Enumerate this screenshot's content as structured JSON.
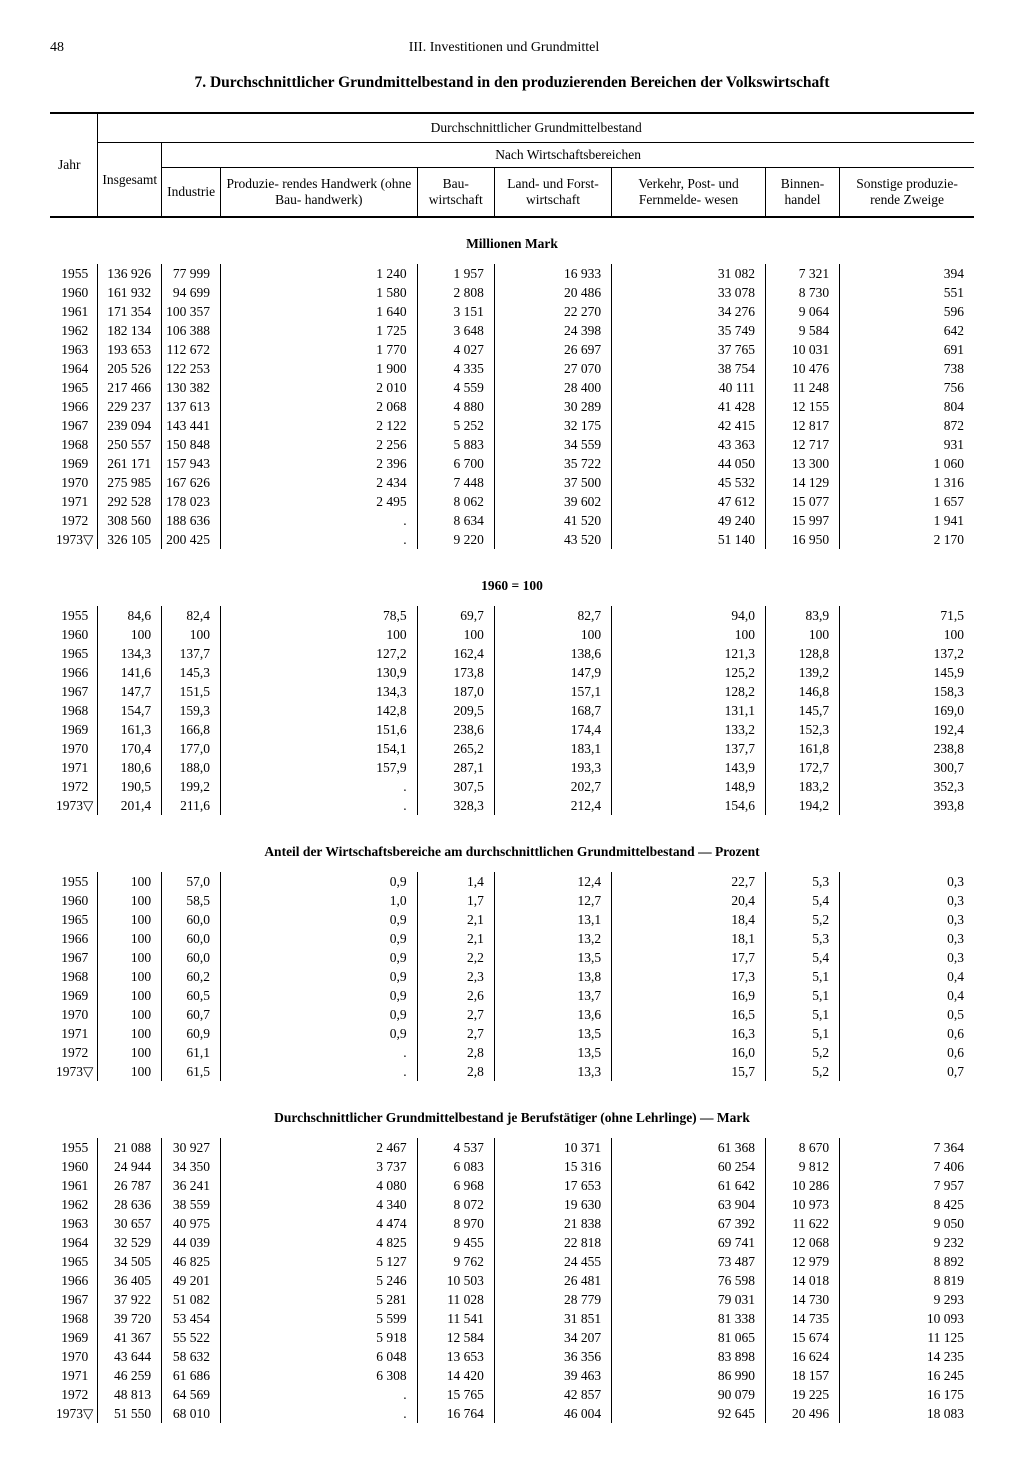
{
  "page_number": "48",
  "chapter": "III. Investitionen und Grundmittel",
  "title": "7. Durchschnittlicher Grundmittelbestand in den produzierenden Bereichen der Volkswirtschaft",
  "columns": {
    "super": "Durchschnittlicher Grundmittelbestand",
    "sub": "Nach Wirtschaftsbereichen",
    "year": "Jahr",
    "total": "Insgesamt",
    "c1": "Industrie",
    "c2": "Produzie-\nrendes\nHandwerk\n(ohne Bau-\nhandwerk)",
    "c3": "Bau-\nwirtschaft",
    "c4": "Land- und\nForst-\nwirtschaft",
    "c5": "Verkehr,\nPost- und\nFernmelde-\nwesen",
    "c6": "Binnen-\nhandel",
    "c7": "Sonstige\nproduzie-\nrende\nZweige"
  },
  "sections": [
    {
      "title": "Millionen Mark",
      "rows": [
        [
          "1955",
          "136 926",
          "77 999",
          "1 240",
          "1 957",
          "16 933",
          "31 082",
          "7 321",
          "394"
        ],
        [
          "1960",
          "161 932",
          "94 699",
          "1 580",
          "2 808",
          "20 486",
          "33 078",
          "8 730",
          "551"
        ],
        [
          "1961",
          "171 354",
          "100 357",
          "1 640",
          "3 151",
          "22 270",
          "34 276",
          "9 064",
          "596"
        ],
        [
          "1962",
          "182 134",
          "106 388",
          "1 725",
          "3 648",
          "24 398",
          "35 749",
          "9 584",
          "642"
        ],
        [
          "1963",
          "193 653",
          "112 672",
          "1 770",
          "4 027",
          "26 697",
          "37 765",
          "10 031",
          "691"
        ],
        [
          "1964",
          "205 526",
          "122 253",
          "1 900",
          "4 335",
          "27 070",
          "38 754",
          "10 476",
          "738"
        ],
        [
          "1965",
          "217 466",
          "130 382",
          "2 010",
          "4 559",
          "28 400",
          "40 111",
          "11 248",
          "756"
        ],
        [
          "1966",
          "229 237",
          "137 613",
          "2 068",
          "4 880",
          "30 289",
          "41 428",
          "12 155",
          "804"
        ],
        [
          "1967",
          "239 094",
          "143 441",
          "2 122",
          "5 252",
          "32 175",
          "42 415",
          "12 817",
          "872"
        ],
        [
          "1968",
          "250 557",
          "150 848",
          "2 256",
          "5 883",
          "34 559",
          "43 363",
          "12 717",
          "931"
        ],
        [
          "1969",
          "261 171",
          "157 943",
          "2 396",
          "6 700",
          "35 722",
          "44 050",
          "13 300",
          "1 060"
        ],
        [
          "1970",
          "275 985",
          "167 626",
          "2 434",
          "7 448",
          "37 500",
          "45 532",
          "14 129",
          "1 316"
        ],
        [
          "1971",
          "292 528",
          "178 023",
          "2 495",
          "8 062",
          "39 602",
          "47 612",
          "15 077",
          "1 657"
        ],
        [
          "1972",
          "308 560",
          "188 636",
          ".",
          "8 634",
          "41 520",
          "49 240",
          "15 997",
          "1 941"
        ],
        [
          "1973▽",
          "326 105",
          "200 425",
          ".",
          "9 220",
          "43 520",
          "51 140",
          "16 950",
          "2 170"
        ]
      ]
    },
    {
      "title": "1960 = 100",
      "rows": [
        [
          "1955",
          "84,6",
          "82,4",
          "78,5",
          "69,7",
          "82,7",
          "94,0",
          "83,9",
          "71,5"
        ],
        [
          "1960",
          "100",
          "100",
          "100",
          "100",
          "100",
          "100",
          "100",
          "100"
        ],
        [
          "1965",
          "134,3",
          "137,7",
          "127,2",
          "162,4",
          "138,6",
          "121,3",
          "128,8",
          "137,2"
        ],
        [
          "1966",
          "141,6",
          "145,3",
          "130,9",
          "173,8",
          "147,9",
          "125,2",
          "139,2",
          "145,9"
        ],
        [
          "1967",
          "147,7",
          "151,5",
          "134,3",
          "187,0",
          "157,1",
          "128,2",
          "146,8",
          "158,3"
        ],
        [
          "1968",
          "154,7",
          "159,3",
          "142,8",
          "209,5",
          "168,7",
          "131,1",
          "145,7",
          "169,0"
        ],
        [
          "1969",
          "161,3",
          "166,8",
          "151,6",
          "238,6",
          "174,4",
          "133,2",
          "152,3",
          "192,4"
        ],
        [
          "1970",
          "170,4",
          "177,0",
          "154,1",
          "265,2",
          "183,1",
          "137,7",
          "161,8",
          "238,8"
        ],
        [
          "1971",
          "180,6",
          "188,0",
          "157,9",
          "287,1",
          "193,3",
          "143,9",
          "172,7",
          "300,7"
        ],
        [
          "1972",
          "190,5",
          "199,2",
          ".",
          "307,5",
          "202,7",
          "148,9",
          "183,2",
          "352,3"
        ],
        [
          "1973▽",
          "201,4",
          "211,6",
          ".",
          "328,3",
          "212,4",
          "154,6",
          "194,2",
          "393,8"
        ]
      ]
    },
    {
      "title": "Anteil der Wirtschaftsbereiche am durchschnittlichen Grundmittelbestand — Prozent",
      "rows": [
        [
          "1955",
          "100",
          "57,0",
          "0,9",
          "1,4",
          "12,4",
          "22,7",
          "5,3",
          "0,3"
        ],
        [
          "1960",
          "100",
          "58,5",
          "1,0",
          "1,7",
          "12,7",
          "20,4",
          "5,4",
          "0,3"
        ],
        [
          "1965",
          "100",
          "60,0",
          "0,9",
          "2,1",
          "13,1",
          "18,4",
          "5,2",
          "0,3"
        ],
        [
          "1966",
          "100",
          "60,0",
          "0,9",
          "2,1",
          "13,2",
          "18,1",
          "5,3",
          "0,3"
        ],
        [
          "1967",
          "100",
          "60,0",
          "0,9",
          "2,2",
          "13,5",
          "17,7",
          "5,4",
          "0,3"
        ],
        [
          "1968",
          "100",
          "60,2",
          "0,9",
          "2,3",
          "13,8",
          "17,3",
          "5,1",
          "0,4"
        ],
        [
          "1969",
          "100",
          "60,5",
          "0,9",
          "2,6",
          "13,7",
          "16,9",
          "5,1",
          "0,4"
        ],
        [
          "1970",
          "100",
          "60,7",
          "0,9",
          "2,7",
          "13,6",
          "16,5",
          "5,1",
          "0,5"
        ],
        [
          "1971",
          "100",
          "60,9",
          "0,9",
          "2,7",
          "13,5",
          "16,3",
          "5,1",
          "0,6"
        ],
        [
          "1972",
          "100",
          "61,1",
          ".",
          "2,8",
          "13,5",
          "16,0",
          "5,2",
          "0,6"
        ],
        [
          "1973▽",
          "100",
          "61,5",
          ".",
          "2,8",
          "13,3",
          "15,7",
          "5,2",
          "0,7"
        ]
      ]
    },
    {
      "title": "Durchschnittlicher Grundmittelbestand je Berufstätiger (ohne Lehrlinge) — Mark",
      "rows": [
        [
          "1955",
          "21 088",
          "30 927",
          "2 467",
          "4 537",
          "10 371",
          "61 368",
          "8 670",
          "7 364"
        ],
        [
          "1960",
          "24 944",
          "34 350",
          "3 737",
          "6 083",
          "15 316",
          "60 254",
          "9 812",
          "7 406"
        ],
        [
          "1961",
          "26 787",
          "36 241",
          "4 080",
          "6 968",
          "17 653",
          "61 642",
          "10 286",
          "7 957"
        ],
        [
          "1962",
          "28 636",
          "38 559",
          "4 340",
          "8 072",
          "19 630",
          "63 904",
          "10 973",
          "8 425"
        ],
        [
          "1963",
          "30 657",
          "40 975",
          "4 474",
          "8 970",
          "21 838",
          "67 392",
          "11 622",
          "9 050"
        ],
        [
          "1964",
          "32 529",
          "44 039",
          "4 825",
          "9 455",
          "22 818",
          "69 741",
          "12 068",
          "9 232"
        ],
        [
          "1965",
          "34 505",
          "46 825",
          "5 127",
          "9 762",
          "24 455",
          "73 487",
          "12 979",
          "8 892"
        ],
        [
          "1966",
          "36 405",
          "49 201",
          "5 246",
          "10 503",
          "26 481",
          "76 598",
          "14 018",
          "8 819"
        ],
        [
          "1967",
          "37 922",
          "51 082",
          "5 281",
          "11 028",
          "28 779",
          "79 031",
          "14 730",
          "9 293"
        ],
        [
          "1968",
          "39 720",
          "53 454",
          "5 599",
          "11 541",
          "31 851",
          "81 338",
          "14 735",
          "10 093"
        ],
        [
          "1969",
          "41 367",
          "55 522",
          "5 918",
          "12 584",
          "34 207",
          "81 065",
          "15 674",
          "11 125"
        ],
        [
          "1970",
          "43 644",
          "58 632",
          "6 048",
          "13 653",
          "36 356",
          "83 898",
          "16 624",
          "14 235"
        ],
        [
          "1971",
          "46 259",
          "61 686",
          "6 308",
          "14 420",
          "39 463",
          "86 990",
          "18 157",
          "16 245"
        ],
        [
          "1972",
          "48 813",
          "64 569",
          ".",
          "15 765",
          "42 857",
          "90 079",
          "19 225",
          "16 175"
        ],
        [
          "1973▽",
          "51 550",
          "68 010",
          ".",
          "16 764",
          "46 004",
          "92 645",
          "20 496",
          "18 083"
        ]
      ]
    }
  ]
}
